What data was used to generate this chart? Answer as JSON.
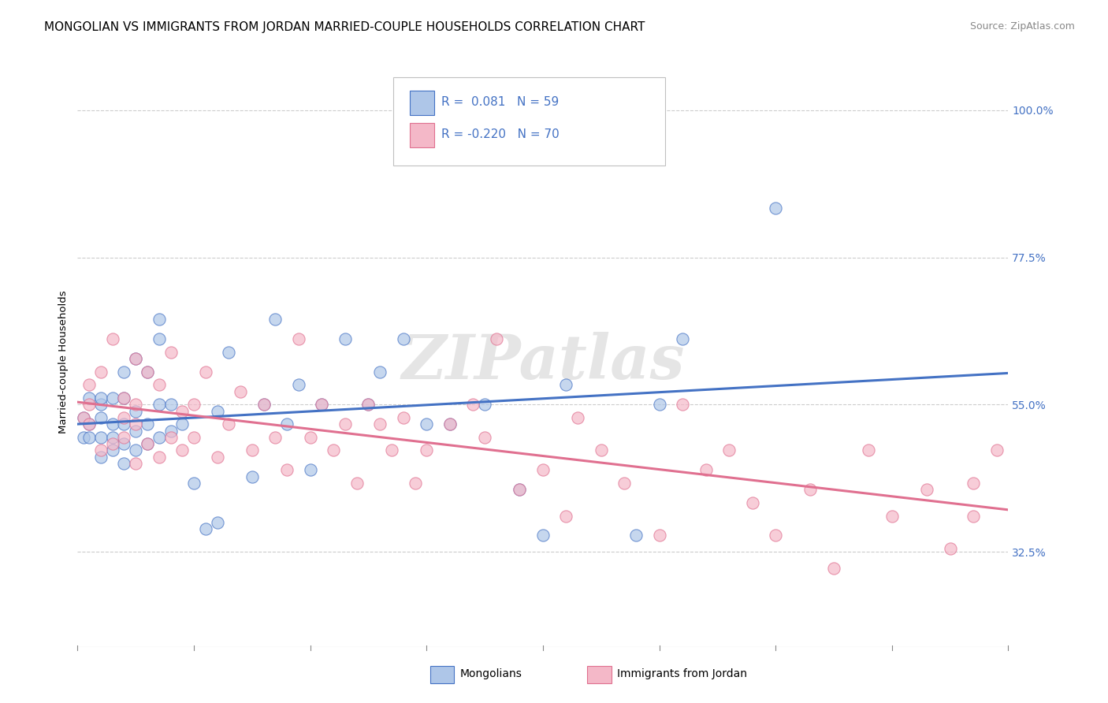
{
  "title": "MONGOLIAN VS IMMIGRANTS FROM JORDAN MARRIED-COUPLE HOUSEHOLDS CORRELATION CHART",
  "source": "Source: ZipAtlas.com",
  "ylabel": "Married-couple Households",
  "ytick_labels": [
    "100.0%",
    "77.5%",
    "55.0%",
    "32.5%"
  ],
  "ytick_values": [
    1.0,
    0.775,
    0.55,
    0.325
  ],
  "xmin": 0.0,
  "xmax": 0.08,
  "ymin": 0.18,
  "ymax": 1.05,
  "mongolian_color": "#aec6e8",
  "jordan_color": "#f4b8c8",
  "mongolian_line_color": "#4472c4",
  "jordan_line_color": "#e07090",
  "R_mongolian": 0.081,
  "N_mongolian": 59,
  "R_jordan": -0.22,
  "N_jordan": 70,
  "watermark": "ZIPatlas",
  "legend_label_mongolian": "Mongolians",
  "legend_label_jordan": "Immigrants from Jordan",
  "mongolian_x": [
    0.0005,
    0.0005,
    0.001,
    0.001,
    0.001,
    0.002,
    0.002,
    0.002,
    0.002,
    0.002,
    0.003,
    0.003,
    0.003,
    0.003,
    0.004,
    0.004,
    0.004,
    0.004,
    0.004,
    0.005,
    0.005,
    0.005,
    0.005,
    0.006,
    0.006,
    0.006,
    0.007,
    0.007,
    0.007,
    0.007,
    0.008,
    0.008,
    0.009,
    0.01,
    0.011,
    0.012,
    0.012,
    0.013,
    0.015,
    0.016,
    0.017,
    0.018,
    0.019,
    0.02,
    0.021,
    0.023,
    0.025,
    0.026,
    0.028,
    0.03,
    0.032,
    0.035,
    0.038,
    0.04,
    0.042,
    0.048,
    0.05,
    0.052,
    0.06
  ],
  "mongolian_y": [
    0.5,
    0.53,
    0.5,
    0.52,
    0.56,
    0.47,
    0.5,
    0.53,
    0.55,
    0.56,
    0.48,
    0.5,
    0.52,
    0.56,
    0.46,
    0.49,
    0.52,
    0.56,
    0.6,
    0.48,
    0.51,
    0.54,
    0.62,
    0.49,
    0.52,
    0.6,
    0.5,
    0.55,
    0.65,
    0.68,
    0.51,
    0.55,
    0.52,
    0.43,
    0.36,
    0.37,
    0.54,
    0.63,
    0.44,
    0.55,
    0.68,
    0.52,
    0.58,
    0.45,
    0.55,
    0.65,
    0.55,
    0.6,
    0.65,
    0.52,
    0.52,
    0.55,
    0.42,
    0.35,
    0.58,
    0.35,
    0.55,
    0.65,
    0.85
  ],
  "jordan_x": [
    0.0005,
    0.001,
    0.001,
    0.001,
    0.002,
    0.002,
    0.003,
    0.003,
    0.004,
    0.004,
    0.004,
    0.005,
    0.005,
    0.005,
    0.005,
    0.006,
    0.006,
    0.007,
    0.007,
    0.008,
    0.008,
    0.009,
    0.009,
    0.01,
    0.01,
    0.011,
    0.012,
    0.013,
    0.014,
    0.015,
    0.016,
    0.017,
    0.018,
    0.019,
    0.02,
    0.021,
    0.022,
    0.023,
    0.024,
    0.025,
    0.026,
    0.027,
    0.028,
    0.029,
    0.03,
    0.032,
    0.034,
    0.035,
    0.036,
    0.038,
    0.04,
    0.042,
    0.043,
    0.045,
    0.047,
    0.05,
    0.052,
    0.054,
    0.056,
    0.058,
    0.06,
    0.063,
    0.065,
    0.068,
    0.07,
    0.073,
    0.075,
    0.077,
    0.077,
    0.079
  ],
  "jordan_y": [
    0.53,
    0.52,
    0.55,
    0.58,
    0.48,
    0.6,
    0.49,
    0.65,
    0.5,
    0.53,
    0.56,
    0.46,
    0.52,
    0.55,
    0.62,
    0.49,
    0.6,
    0.47,
    0.58,
    0.5,
    0.63,
    0.48,
    0.54,
    0.5,
    0.55,
    0.6,
    0.47,
    0.52,
    0.57,
    0.48,
    0.55,
    0.5,
    0.45,
    0.65,
    0.5,
    0.55,
    0.48,
    0.52,
    0.43,
    0.55,
    0.52,
    0.48,
    0.53,
    0.43,
    0.48,
    0.52,
    0.55,
    0.5,
    0.65,
    0.42,
    0.45,
    0.38,
    0.53,
    0.48,
    0.43,
    0.35,
    0.55,
    0.45,
    0.48,
    0.4,
    0.35,
    0.42,
    0.3,
    0.48,
    0.38,
    0.42,
    0.33,
    0.38,
    0.43,
    0.48
  ],
  "background_color": "#ffffff",
  "grid_color": "#cccccc",
  "title_fontsize": 11,
  "axis_fontsize": 9.5,
  "tick_fontsize": 10,
  "right_tick_color": "#4472c4"
}
